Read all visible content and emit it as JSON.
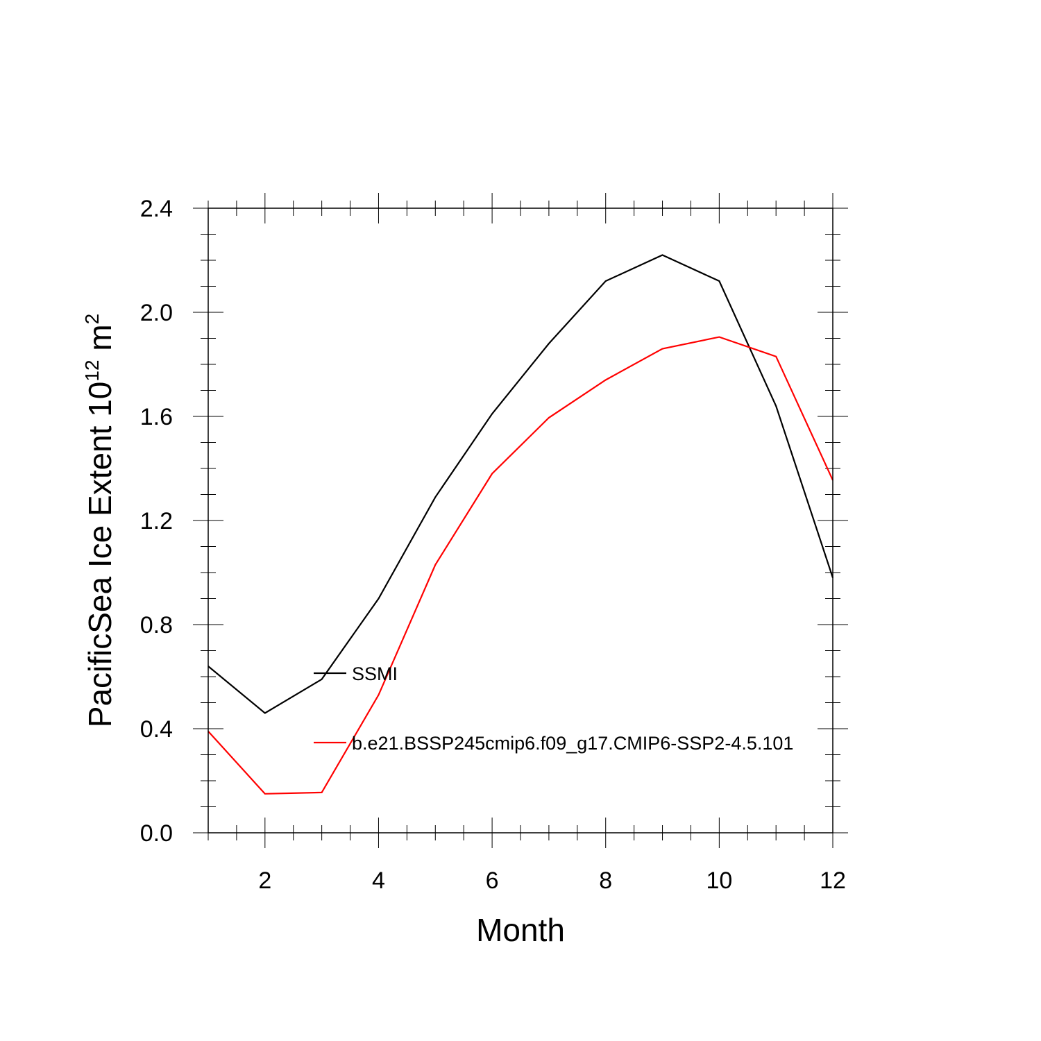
{
  "chart_data": {
    "type": "line",
    "xlabel": "Month",
    "ylabel": {
      "prefix": "PacificSea Ice Extent 10",
      "exp1": "12",
      "mid": " m",
      "exp2": "2"
    },
    "xlim": [
      1,
      12
    ],
    "ylim": [
      0.0,
      2.4
    ],
    "x_ticks": [
      2,
      4,
      6,
      8,
      10,
      12
    ],
    "y_ticks": [
      "0.0",
      "0.4",
      "0.8",
      "1.2",
      "1.6",
      "2.0",
      "2.4"
    ],
    "grid": false,
    "legend_placement": "inside-left",
    "x": [
      1,
      2,
      3,
      4,
      5,
      6,
      7,
      8,
      9,
      10,
      11,
      12
    ],
    "series": [
      {
        "name": "SSMI",
        "color": "#000000",
        "values": [
          0.64,
          0.46,
          0.59,
          0.9,
          1.29,
          1.61,
          1.88,
          2.12,
          2.22,
          2.12,
          1.64,
          0.98
        ]
      },
      {
        "name": "b.e21.BSSP245cmip6.f09_g17.CMIP6-SSP2-4.5.101",
        "color": "#ff0000",
        "values": [
          0.39,
          0.15,
          0.155,
          0.53,
          1.03,
          1.38,
          1.595,
          1.74,
          1.86,
          1.905,
          1.83,
          1.355
        ]
      }
    ]
  }
}
